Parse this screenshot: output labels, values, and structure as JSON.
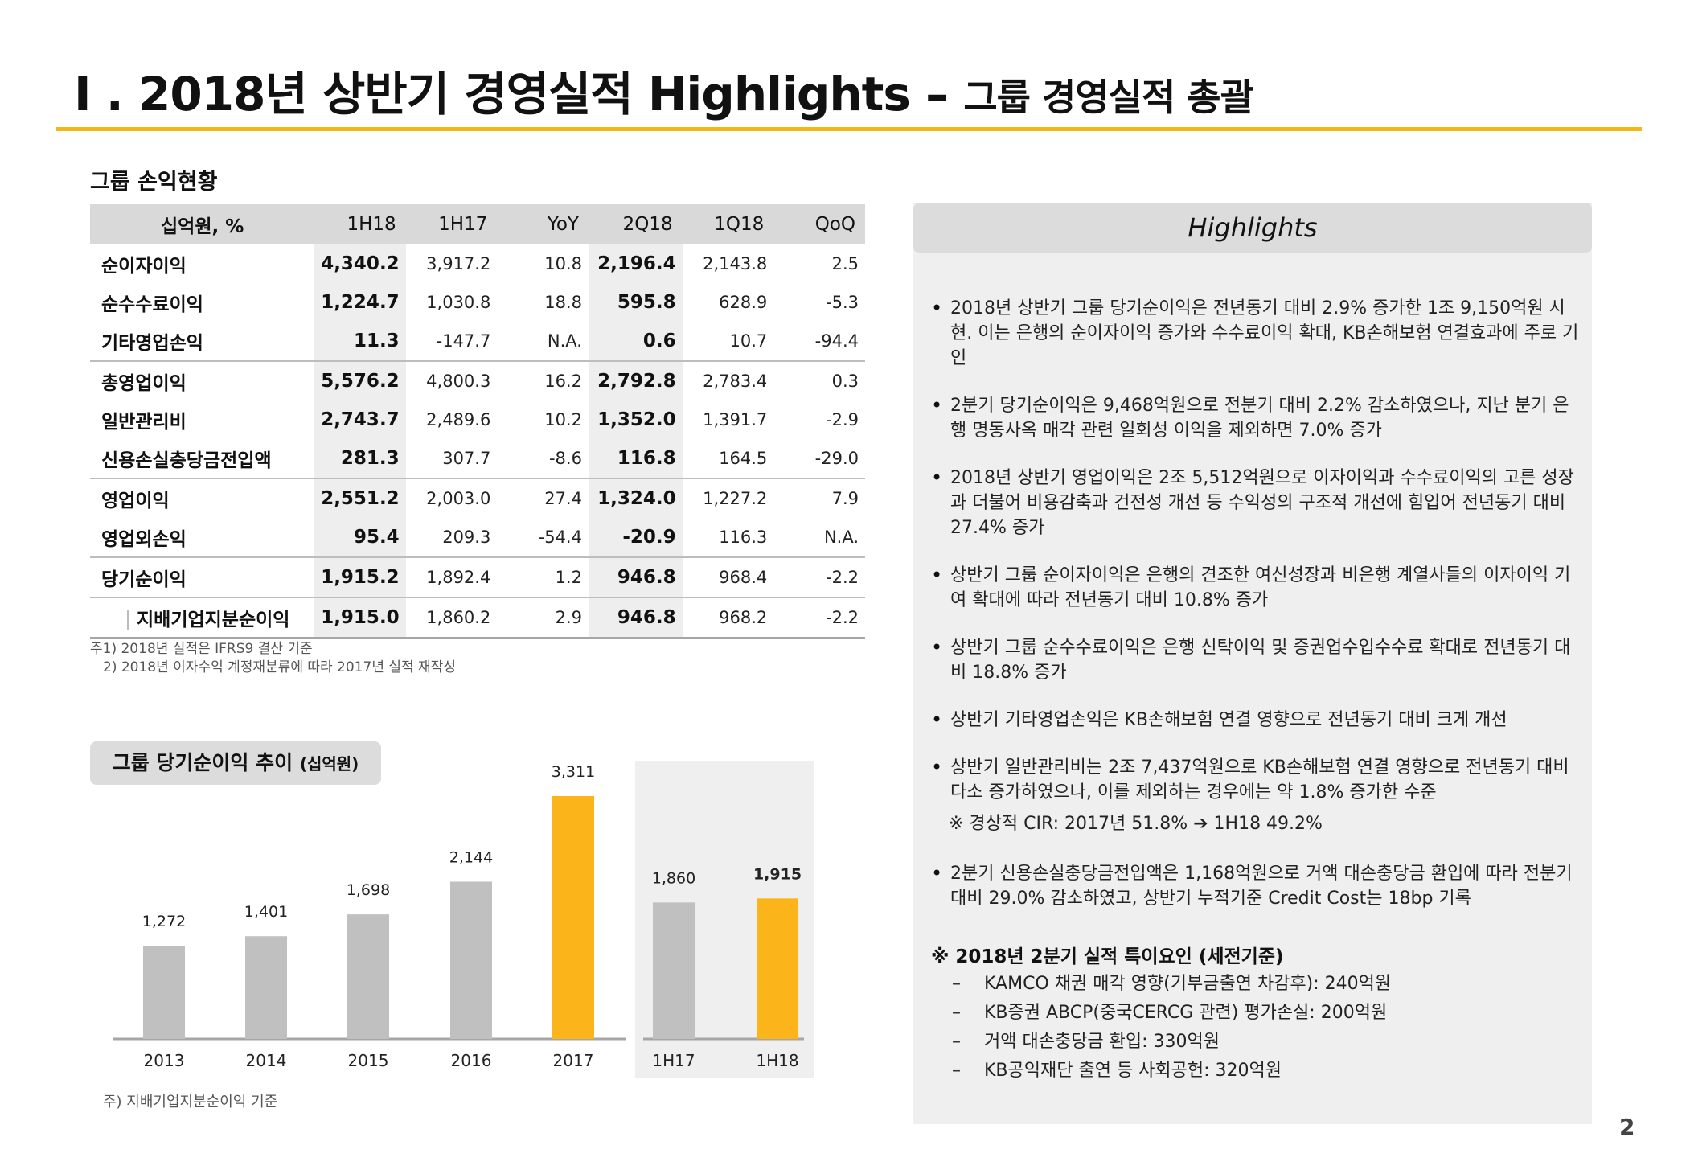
{
  "title": {
    "main": "I . 2018년 상반기 경영실적 Highlights –",
    "sub": "그룹 경영실적 총괄"
  },
  "table_section": {
    "label": "그룹 손익현황",
    "headers": [
      "십억원, %",
      "1H18",
      "1H17",
      "YoY",
      "2Q18",
      "1Q18",
      "QoQ"
    ],
    "rows": [
      [
        "순이자이익",
        "4,340.2",
        "3,917.2",
        "10.8",
        "2,196.4",
        "2,143.8",
        "2.5"
      ],
      [
        "순수수료이익",
        "1,224.7",
        "1,030.8",
        "18.8",
        "595.8",
        "628.9",
        "-5.3"
      ],
      [
        "기타영업손익",
        "11.3",
        "-147.7",
        "N.A.",
        "0.6",
        "10.7",
        "-94.4"
      ],
      [
        "총영업이익",
        "5,576.2",
        "4,800.3",
        "16.2",
        "2,792.8",
        "2,783.4",
        "0.3"
      ],
      [
        "일반관리비",
        "2,743.7",
        "2,489.6",
        "10.2",
        "1,352.0",
        "1,391.7",
        "-2.9"
      ],
      [
        "신용손실충당금전입액",
        "281.3",
        "307.7",
        "-8.6",
        "116.8",
        "164.5",
        "-29.0"
      ],
      [
        "영업이익",
        "2,551.2",
        "2,003.0",
        "27.4",
        "1,324.0",
        "1,227.2",
        "7.9"
      ],
      [
        "영업외손익",
        "95.4",
        "209.3",
        "-54.4",
        "-20.9",
        "116.3",
        "N.A."
      ],
      [
        "당기순이익",
        "1,915.2",
        "1,892.4",
        "1.2",
        "946.8",
        "968.4",
        "-2.2"
      ],
      [
        "지배기업지분순이익",
        "1,915.0",
        "1,860.2",
        "2.9",
        "946.8",
        "968.2",
        "-2.2"
      ]
    ],
    "footnote1": "주1) 2018년 실적은 IFRS9 결산 기준",
    "footnote2": "2) 2018년 이자수익 계정재분류에 따라 2017년 실적 재작성"
  },
  "chart_section": {
    "label": "그룹 당기순이익 추이",
    "label_unit": "(십억원)",
    "footnote": "주) 지배기업지분순이익 기준"
  },
  "chart_data": {
    "type": "bar",
    "title": "그룹 당기순이익 추이 (십억원)",
    "categories": [
      "2013",
      "2014",
      "2015",
      "2016",
      "2017",
      "1H17",
      "1H18"
    ],
    "values": [
      1272,
      1401,
      1698,
      2144,
      3311,
      1860,
      1915
    ],
    "value_labels": [
      "1,272",
      "1,401",
      "1,698",
      "2,144",
      "3,311",
      "1,860",
      "1,915"
    ],
    "highlighted": [
      "2017",
      "1H18"
    ],
    "groups": [
      {
        "categories": [
          "2013",
          "2014",
          "2015",
          "2016",
          "2017"
        ],
        "shaded_background": false
      },
      {
        "categories": [
          "1H17",
          "1H18"
        ],
        "shaded_background": true
      }
    ],
    "ylim": [
      0,
      3311
    ],
    "grid": false,
    "colors": {
      "normal": "#c0c0c0",
      "highlight": "#fbb41a",
      "panel": "#efefef",
      "axis": "#a6a6a6"
    }
  },
  "highlights": {
    "header": "Highlights",
    "bullets": [
      "2018년 상반기 그룹 당기순이익은 전년동기 대비 2.9% 증가한 1조 9,150억원 시현. 이는 은행의 순이자이익 증가와 수수료이익 확대, KB손해보험 연결효과에 주로 기인",
      "2분기 당기순이익은 9,468억원으로 전분기 대비 2.2% 감소하였으나, 지난 분기 은행 명동사옥 매각 관련 일회성 이익을 제외하면 7.0% 증가",
      "2018년 상반기 영업이익은 2조 5,512억원으로 이자이익과 수수료이익의 고른 성장과 더불어 비용감축과 건전성 개선 등 수익성의 구조적 개선에 힘입어 전년동기 대비 27.4% 증가",
      "상반기 그룹 순이자이익은 은행의 견조한 여신성장과 비은행 계열사들의 이자이익 기여 확대에 따라 전년동기 대비 10.8% 증가",
      "상반기 그룹 순수수료이익은 은행 신탁이익 및 증권업수입수수료 확대로 전년동기 대비 18.8% 증가",
      "상반기 기타영업손익은 KB손해보험 연결 영향으로 전년동기 대비 크게 개선",
      "상반기 일반관리비는 2조 7,437억원으로 KB손해보험 연결 영향으로 전년동기 대비 다소 증가하였으나, 이를 제외하는 경우에는 약 1.8% 증가한 수준",
      "2분기 신용손실충당금전입액은 1,168억원으로 거액 대손충당금 환입에 따라 전분기 대비 29.0% 감소하였고, 상반기 누적기준 Credit Cost는 18bp 기록"
    ],
    "cir_note": "※ 경상적 CIR: 2017년 51.8% ➔ 1H18 49.2%",
    "special_title": "※ 2018년 2분기 실적 특이요인 (세전기준)",
    "special_items": [
      "KAMCO 채권 매각 영향(기부금출연 차감후): 240억원",
      "KB증권 ABCP(중국CERCG 관련) 평가손실: 200억원",
      "거액 대손충당금 환입: 330억원",
      "KB공익재단 출연 등 사회공헌: 320억원"
    ]
  },
  "page_number": "2"
}
